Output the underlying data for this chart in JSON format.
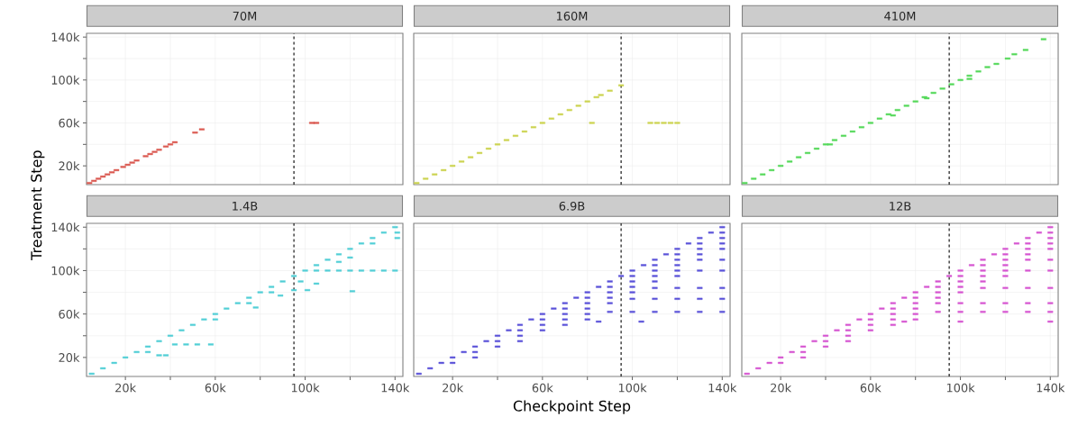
{
  "chart_data": [
    {
      "type": "scatter",
      "title": "70M",
      "ylabel": "Treatment Step",
      "marker": "square",
      "grid": true,
      "tick_labels": "y",
      "xlim": [
        2700,
        143500
      ],
      "ylim": [
        2500,
        143500
      ],
      "xticks": [
        {
          "value": 20000,
          "label": null
        },
        {
          "value": 40000,
          "label": null
        },
        {
          "value": 60000,
          "label": null
        },
        {
          "value": 80000,
          "label": null
        },
        {
          "value": 100000,
          "label": null
        },
        {
          "value": 120000,
          "label": null
        },
        {
          "value": 140000,
          "label": null
        }
      ],
      "yticks": [
        {
          "value": 20000,
          "label": "20k"
        },
        {
          "value": 40000,
          "label": null
        },
        {
          "value": 60000,
          "label": "60k"
        },
        {
          "value": 80000,
          "label": null
        },
        {
          "value": 100000,
          "label": "100k"
        },
        {
          "value": 120000,
          "label": null
        },
        {
          "value": 140000,
          "label": "140k"
        }
      ],
      "ref_lines": [
        {
          "axis": "x",
          "value": 95000,
          "color": "#000000",
          "line_style": "dashed"
        }
      ],
      "series": [
        {
          "color": "#db5a52",
          "x": [
            4000,
            6000,
            8000,
            10000,
            12000,
            14000,
            16000,
            19000,
            21000,
            23000,
            25000,
            29000,
            31000,
            33000,
            35000,
            38000,
            40000,
            42000,
            51000,
            54000,
            103000,
            105000
          ],
          "values": [
            4000,
            6000,
            8000,
            10000,
            12000,
            14000,
            16000,
            19000,
            21000,
            23000,
            25000,
            29000,
            31000,
            33000,
            35000,
            38000,
            40000,
            42000,
            51000,
            54000,
            60000,
            60000
          ]
        }
      ]
    },
    {
      "type": "scatter",
      "title": "160M",
      "marker": "square",
      "grid": true,
      "tick_labels": false,
      "xlim": [
        2700,
        143500
      ],
      "ylim": [
        2500,
        143500
      ],
      "xticks": [
        {
          "value": 20000,
          "label": null
        },
        {
          "value": 40000,
          "label": null
        },
        {
          "value": 60000,
          "label": null
        },
        {
          "value": 80000,
          "label": null
        },
        {
          "value": 100000,
          "label": null
        },
        {
          "value": 120000,
          "label": null
        },
        {
          "value": 140000,
          "label": null
        }
      ],
      "yticks": [
        {
          "value": 20000,
          "label": null
        },
        {
          "value": 40000,
          "label": null
        },
        {
          "value": 60000,
          "label": null
        },
        {
          "value": 80000,
          "label": null
        },
        {
          "value": 100000,
          "label": null
        },
        {
          "value": 120000,
          "label": null
        },
        {
          "value": 140000,
          "label": null
        }
      ],
      "ref_lines": [
        {
          "axis": "x",
          "value": 95000,
          "color": "#000000",
          "line_style": "dashed"
        }
      ],
      "series": [
        {
          "color": "#cdd451",
          "x": [
            4000,
            8000,
            12000,
            16000,
            20000,
            24000,
            28000,
            32000,
            36000,
            40000,
            44000,
            48000,
            52000,
            56000,
            60000,
            64000,
            68000,
            72000,
            76000,
            80000,
            84000,
            86000,
            90000,
            95000,
            82000,
            108000,
            111000,
            114000,
            117000,
            120000
          ],
          "values": [
            4000,
            8000,
            12000,
            16000,
            20000,
            24000,
            28000,
            32000,
            36000,
            40000,
            44000,
            48000,
            52000,
            56000,
            60000,
            64000,
            68000,
            72000,
            76000,
            80000,
            84000,
            86000,
            90000,
            95000,
            60000,
            60000,
            60000,
            60000,
            60000,
            60000
          ]
        }
      ]
    },
    {
      "type": "scatter",
      "title": "410M",
      "marker": "square",
      "grid": true,
      "tick_labels": false,
      "xlim": [
        2700,
        143500
      ],
      "ylim": [
        2500,
        143500
      ],
      "xticks": [
        {
          "value": 20000,
          "label": null
        },
        {
          "value": 40000,
          "label": null
        },
        {
          "value": 60000,
          "label": null
        },
        {
          "value": 80000,
          "label": null
        },
        {
          "value": 100000,
          "label": null
        },
        {
          "value": 120000,
          "label": null
        },
        {
          "value": 140000,
          "label": null
        }
      ],
      "yticks": [
        {
          "value": 20000,
          "label": null
        },
        {
          "value": 40000,
          "label": null
        },
        {
          "value": 60000,
          "label": null
        },
        {
          "value": 80000,
          "label": null
        },
        {
          "value": 100000,
          "label": null
        },
        {
          "value": 120000,
          "label": null
        },
        {
          "value": 140000,
          "label": null
        }
      ],
      "ref_lines": [
        {
          "axis": "x",
          "value": 95000,
          "color": "#000000",
          "line_style": "dashed"
        }
      ],
      "series": [
        {
          "color": "#55d95a",
          "x": [
            4000,
            8000,
            12000,
            16000,
            20000,
            24000,
            28000,
            32000,
            36000,
            40000,
            44000,
            48000,
            52000,
            56000,
            60000,
            64000,
            68000,
            72000,
            76000,
            80000,
            84000,
            88000,
            92000,
            96000,
            100000,
            104000,
            108000,
            112000,
            116000,
            121000,
            124000,
            129000,
            137000,
            104000,
            70000,
            85000,
            42000
          ],
          "values": [
            4000,
            8000,
            12000,
            16000,
            20000,
            24000,
            28000,
            32000,
            36000,
            40000,
            44000,
            48000,
            52000,
            56000,
            60000,
            64000,
            68000,
            72000,
            76000,
            80000,
            84000,
            88000,
            92000,
            96000,
            100000,
            104000,
            108000,
            112000,
            115000,
            120000,
            124000,
            128000,
            138000,
            101000,
            67000,
            83000,
            40000
          ]
        }
      ]
    },
    {
      "type": "scatter",
      "title": "1.4B",
      "marker": "square",
      "grid": true,
      "xlim": [
        2700,
        143500
      ],
      "ylim": [
        2500,
        143500
      ],
      "xticks": [
        {
          "value": 20000,
          "label": "20k"
        },
        {
          "value": 40000,
          "label": null
        },
        {
          "value": 60000,
          "label": "60k"
        },
        {
          "value": 80000,
          "label": null
        },
        {
          "value": 100000,
          "label": "100k"
        },
        {
          "value": 120000,
          "label": null
        },
        {
          "value": 140000,
          "label": "140k"
        }
      ],
      "yticks": [
        {
          "value": 20000,
          "label": "20k"
        },
        {
          "value": 40000,
          "label": null
        },
        {
          "value": 60000,
          "label": "60k"
        },
        {
          "value": 80000,
          "label": null
        },
        {
          "value": 100000,
          "label": "100k"
        },
        {
          "value": 120000,
          "label": null
        },
        {
          "value": 140000,
          "label": "140k"
        }
      ],
      "ref_lines": [
        {
          "axis": "x",
          "value": 95000,
          "color": "#000000",
          "line_style": "dashed"
        }
      ],
      "series": [
        {
          "color": "#52cfd6",
          "x": [
            5000,
            10000,
            15000,
            20000,
            25000,
            30000,
            35000,
            40000,
            45000,
            50000,
            55000,
            60000,
            65000,
            70000,
            75000,
            80000,
            85000,
            90000,
            95000,
            100000,
            105000,
            110000,
            115000,
            120000,
            125000,
            130000,
            135000,
            140000,
            30000,
            35000,
            38000,
            42000,
            47000,
            52000,
            58000,
            60000,
            75000,
            78000,
            85000,
            89000,
            95000,
            101000,
            121000,
            98000,
            105000,
            105000,
            110000,
            115000,
            120000,
            125000,
            130000,
            135000,
            140000,
            115000,
            120000,
            130000,
            141000,
            141000
          ],
          "values": [
            5000,
            10000,
            15000,
            20000,
            25000,
            30000,
            35000,
            40000,
            45000,
            50000,
            55000,
            60000,
            65000,
            70000,
            75000,
            80000,
            85000,
            90000,
            95000,
            100000,
            105000,
            110000,
            115000,
            120000,
            125000,
            130000,
            135000,
            140000,
            25000,
            22000,
            22000,
            32000,
            32000,
            32000,
            32000,
            55000,
            70000,
            66000,
            80000,
            77000,
            82000,
            82000,
            81000,
            90000,
            88000,
            100000,
            100000,
            100000,
            100000,
            100000,
            100000,
            100000,
            100000,
            108000,
            112000,
            125000,
            135000,
            130000
          ]
        }
      ]
    },
    {
      "type": "scatter",
      "title": "6.9B",
      "xlabel": "Checkpoint Step",
      "marker": "square",
      "grid": true,
      "tick_labels": "x",
      "xlim": [
        2700,
        143500
      ],
      "ylim": [
        2500,
        143500
      ],
      "xticks": [
        {
          "value": 20000,
          "label": "20k"
        },
        {
          "value": 40000,
          "label": null
        },
        {
          "value": 60000,
          "label": "60k"
        },
        {
          "value": 80000,
          "label": null
        },
        {
          "value": 100000,
          "label": "100k"
        },
        {
          "value": 120000,
          "label": null
        },
        {
          "value": 140000,
          "label": "140k"
        }
      ],
      "yticks": [
        {
          "value": 20000,
          "label": null
        },
        {
          "value": 40000,
          "label": null
        },
        {
          "value": 60000,
          "label": null
        },
        {
          "value": 80000,
          "label": null
        },
        {
          "value": 100000,
          "label": null
        },
        {
          "value": 120000,
          "label": null
        },
        {
          "value": 140000,
          "label": null
        }
      ],
      "ref_lines": [
        {
          "axis": "x",
          "value": 95000,
          "color": "#000000",
          "line_style": "dashed"
        }
      ],
      "series": [
        {
          "color": "#5a52d9",
          "x": [
            5000,
            10000,
            15000,
            20000,
            25000,
            30000,
            35000,
            40000,
            45000,
            50000,
            55000,
            60000,
            65000,
            70000,
            75000,
            80000,
            85000,
            90000,
            95000,
            100000,
            105000,
            110000,
            115000,
            120000,
            125000,
            130000,
            135000,
            140000,
            20000,
            30000,
            30000,
            40000,
            40000,
            50000,
            50000,
            50000,
            60000,
            60000,
            60000,
            70000,
            70000,
            70000,
            70000,
            80000,
            80000,
            80000,
            80000,
            80000,
            90000,
            90000,
            90000,
            90000,
            90000,
            100000,
            100000,
            100000,
            100000,
            100000,
            100000,
            110000,
            110000,
            110000,
            110000,
            110000,
            110000,
            110000,
            120000,
            120000,
            120000,
            120000,
            120000,
            120000,
            120000,
            120000,
            130000,
            130000,
            130000,
            130000,
            130000,
            130000,
            130000,
            130000,
            140000,
            140000,
            140000,
            140000,
            140000,
            140000,
            140000,
            140000,
            140000,
            85000,
            104000
          ],
          "values": [
            5000,
            10000,
            15000,
            20000,
            25000,
            30000,
            35000,
            40000,
            45000,
            50000,
            55000,
            60000,
            65000,
            70000,
            75000,
            80000,
            85000,
            90000,
            95000,
            100000,
            105000,
            110000,
            115000,
            120000,
            125000,
            130000,
            135000,
            140000,
            15000,
            25000,
            20000,
            35000,
            30000,
            45000,
            40000,
            35000,
            55000,
            50000,
            45000,
            65000,
            60000,
            55000,
            50000,
            75000,
            70000,
            65000,
            60000,
            55000,
            85000,
            80000,
            75000,
            70000,
            62000,
            95000,
            90000,
            85000,
            80000,
            74000,
            62000,
            105000,
            100000,
            95000,
            90000,
            84000,
            74000,
            62000,
            115000,
            110000,
            105000,
            100000,
            95000,
            84000,
            74000,
            62000,
            125000,
            120000,
            115000,
            110000,
            100000,
            84000,
            74000,
            62000,
            135000,
            130000,
            125000,
            120000,
            110000,
            100000,
            84000,
            74000,
            62000,
            53000,
            53000
          ]
        }
      ]
    },
    {
      "type": "scatter",
      "title": "12B",
      "marker": "square",
      "grid": true,
      "tick_labels": "x",
      "xlim": [
        2700,
        143500
      ],
      "ylim": [
        2500,
        143500
      ],
      "xticks": [
        {
          "value": 20000,
          "label": "20k"
        },
        {
          "value": 40000,
          "label": null
        },
        {
          "value": 60000,
          "label": "60k"
        },
        {
          "value": 80000,
          "label": null
        },
        {
          "value": 100000,
          "label": "100k"
        },
        {
          "value": 120000,
          "label": null
        },
        {
          "value": 140000,
          "label": "140k"
        }
      ],
      "yticks": [
        {
          "value": 20000,
          "label": null
        },
        {
          "value": 40000,
          "label": null
        },
        {
          "value": 60000,
          "label": null
        },
        {
          "value": 80000,
          "label": null
        },
        {
          "value": 100000,
          "label": null
        },
        {
          "value": 120000,
          "label": null
        },
        {
          "value": 140000,
          "label": null
        }
      ],
      "ref_lines": [
        {
          "axis": "x",
          "value": 95000,
          "color": "#000000",
          "line_style": "dashed"
        }
      ],
      "series": [
        {
          "color": "#d655d1",
          "x": [
            5000,
            10000,
            15000,
            20000,
            25000,
            30000,
            35000,
            40000,
            45000,
            50000,
            55000,
            60000,
            65000,
            70000,
            75000,
            80000,
            85000,
            90000,
            95000,
            100000,
            105000,
            110000,
            115000,
            120000,
            125000,
            130000,
            135000,
            140000,
            20000,
            30000,
            30000,
            40000,
            40000,
            50000,
            50000,
            50000,
            60000,
            60000,
            60000,
            70000,
            70000,
            70000,
            70000,
            80000,
            80000,
            80000,
            80000,
            80000,
            90000,
            90000,
            90000,
            90000,
            90000,
            100000,
            100000,
            100000,
            100000,
            100000,
            100000,
            110000,
            110000,
            110000,
            110000,
            110000,
            110000,
            110000,
            120000,
            120000,
            120000,
            120000,
            120000,
            120000,
            120000,
            120000,
            130000,
            130000,
            130000,
            130000,
            130000,
            130000,
            130000,
            130000,
            140000,
            140000,
            140000,
            140000,
            140000,
            140000,
            140000,
            140000,
            140000,
            75000,
            100000,
            140000
          ],
          "values": [
            5000,
            10000,
            15000,
            20000,
            25000,
            30000,
            35000,
            40000,
            45000,
            50000,
            55000,
            60000,
            65000,
            70000,
            75000,
            80000,
            85000,
            90000,
            95000,
            100000,
            105000,
            110000,
            115000,
            120000,
            125000,
            130000,
            135000,
            140000,
            15000,
            25000,
            20000,
            35000,
            30000,
            45000,
            40000,
            35000,
            55000,
            50000,
            45000,
            65000,
            60000,
            55000,
            50000,
            75000,
            70000,
            65000,
            60000,
            55000,
            85000,
            80000,
            75000,
            70000,
            62000,
            95000,
            90000,
            85000,
            80000,
            70000,
            62000,
            105000,
            100000,
            95000,
            90000,
            84000,
            70000,
            62000,
            115000,
            110000,
            105000,
            100000,
            95000,
            84000,
            70000,
            62000,
            125000,
            120000,
            115000,
            110000,
            100000,
            84000,
            70000,
            62000,
            135000,
            130000,
            125000,
            120000,
            110000,
            100000,
            84000,
            70000,
            62000,
            53000,
            53000,
            53000
          ]
        }
      ]
    }
  ]
}
